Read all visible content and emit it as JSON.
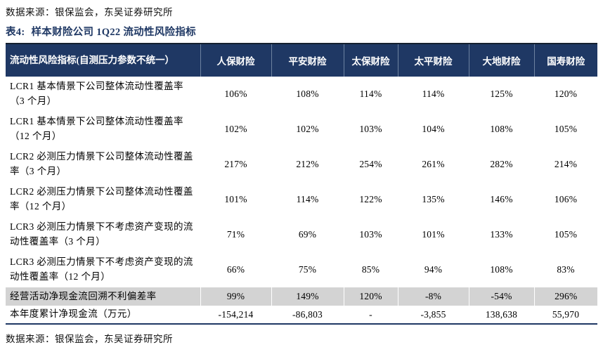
{
  "page": {
    "source_top": "数据来源：银保监会，东吴证券研究所",
    "source_bottom": "数据来源：银保监会，东吴证券研究所",
    "table_label": "表4:",
    "table_title": "样本财险公司 1Q22 流动性风险指标"
  },
  "colors": {
    "header_bg": "#1f3864",
    "title_text": "#1f3864",
    "highlight_row_bg": "#d3d3d3",
    "header_divider": "#6d82a0"
  },
  "table": {
    "header": [
      "流动性风险指标(自测压力参数不统一）",
      "人保财险",
      "平安财险",
      "太保财险",
      "太平财险",
      "大地财险",
      "国寿财险"
    ],
    "rows": [
      {
        "label": "LCR1 基本情景下公司整体流动性覆盖率（3 个月）",
        "values": [
          "106%",
          "108%",
          "114%",
          "114%",
          "125%",
          "120%"
        ]
      },
      {
        "label": "LCR1 基本情景下公司整体流动性覆盖率（12 个月）",
        "values": [
          "102%",
          "102%",
          "103%",
          "104%",
          "108%",
          "105%"
        ]
      },
      {
        "label": "LCR2 必测压力情景下公司整体流动性覆盖率（3 个月）",
        "values": [
          "217%",
          "212%",
          "254%",
          "261%",
          "282%",
          "214%"
        ]
      },
      {
        "label": "LCR2 必测压力情景下公司整体流动性覆盖率（12 个月）",
        "values": [
          "101%",
          "114%",
          "122%",
          "135%",
          "146%",
          "106%"
        ]
      },
      {
        "label": "LCR3 必测压力情景下不考虑资产变现的流动性覆盖率（3 个月）",
        "values": [
          "71%",
          "69%",
          "103%",
          "101%",
          "133%",
          "105%"
        ]
      },
      {
        "label": "LCR3 必测压力情景下不考虑资产变现的流动性覆盖率（12 个月）",
        "values": [
          "66%",
          "75%",
          "85%",
          "94%",
          "108%",
          "83%"
        ]
      },
      {
        "label": "经营活动净现金流回溯不利偏差率",
        "values": [
          "99%",
          "149%",
          "120%",
          "-8%",
          "-54%",
          "296%"
        ]
      },
      {
        "label": "本年度累计净现金流（万元）",
        "values": [
          "-154,214",
          "-86,803",
          "-",
          "-3,855",
          "138,638",
          "55,970"
        ]
      }
    ]
  }
}
